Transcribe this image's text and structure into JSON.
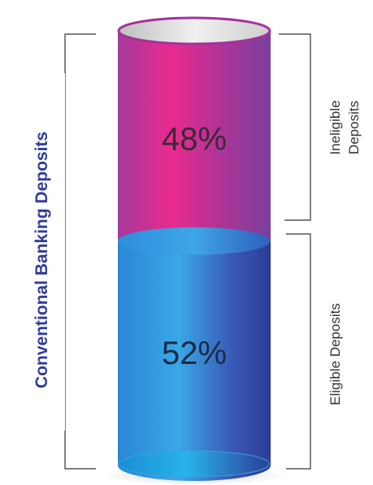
{
  "chart_data": {
    "type": "bar",
    "title": "",
    "xlabel": "",
    "ylabel": "Conventional Banking Deposits",
    "categories": [
      "Eligible Deposits",
      "Ineligible Deposits"
    ],
    "values": [
      52,
      48
    ],
    "data_labels": [
      "52%",
      "48%"
    ],
    "bracket_labels": {
      "ineligible": [
        "Ineligible",
        "Deposits"
      ],
      "eligible": "Eligible Deposits"
    },
    "colors": {
      "ineligible": "#c22b8c",
      "eligible": "#2b8ad8",
      "axis_label": "#2f3d9a",
      "bracket": "#333333"
    }
  }
}
